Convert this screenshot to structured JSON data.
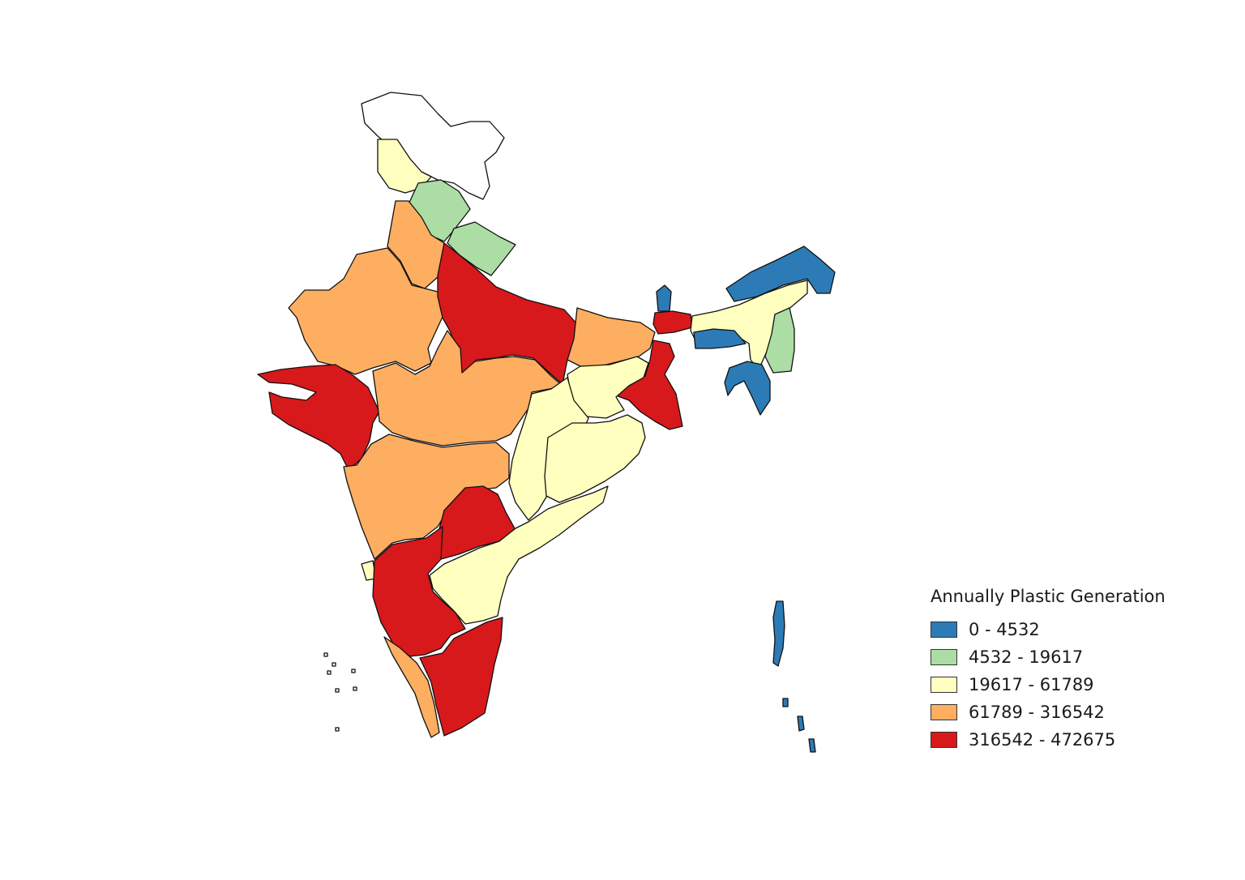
{
  "legend": {
    "title": "Annually Plastic Generation",
    "classes": [
      {
        "label": "0 - 4532",
        "color": "#2c7bb6"
      },
      {
        "label": "4532 - 19617",
        "color": "#abdda4"
      },
      {
        "label": "19617 - 61789",
        "color": "#ffffbf"
      },
      {
        "label": "61789 - 316542",
        "color": "#fdae61"
      },
      {
        "label": "316542 - 472675",
        "color": "#d7191c"
      }
    ]
  },
  "no_data_color": "#ffffff"
}
